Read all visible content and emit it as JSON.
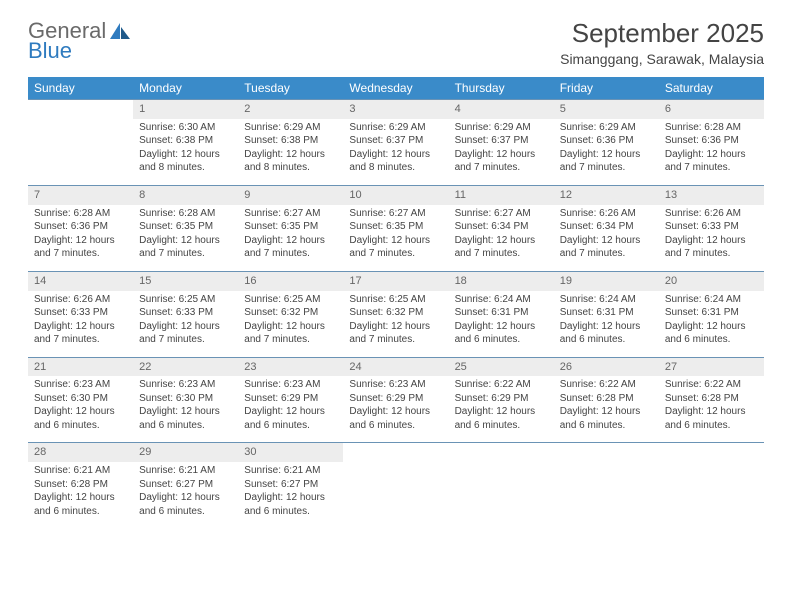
{
  "logo": {
    "text_general": "General",
    "text_blue": "Blue"
  },
  "title": "September 2025",
  "location": "Simanggang, Sarawak, Malaysia",
  "colors": {
    "header_bg": "#3a8bc9",
    "header_text": "#ffffff",
    "daynum_bg": "#ededed",
    "row_border": "#6a93b5",
    "body_text": "#444444",
    "logo_grey": "#6a6a6a",
    "logo_blue": "#2f7bbf"
  },
  "weekdays": [
    "Sunday",
    "Monday",
    "Tuesday",
    "Wednesday",
    "Thursday",
    "Friday",
    "Saturday"
  ],
  "layout": {
    "first_day_col": 1,
    "days_in_month": 30,
    "cols": 7
  },
  "days": {
    "1": {
      "sunrise": "6:30 AM",
      "sunset": "6:38 PM",
      "daylight": "12 hours and 8 minutes."
    },
    "2": {
      "sunrise": "6:29 AM",
      "sunset": "6:38 PM",
      "daylight": "12 hours and 8 minutes."
    },
    "3": {
      "sunrise": "6:29 AM",
      "sunset": "6:37 PM",
      "daylight": "12 hours and 8 minutes."
    },
    "4": {
      "sunrise": "6:29 AM",
      "sunset": "6:37 PM",
      "daylight": "12 hours and 7 minutes."
    },
    "5": {
      "sunrise": "6:29 AM",
      "sunset": "6:36 PM",
      "daylight": "12 hours and 7 minutes."
    },
    "6": {
      "sunrise": "6:28 AM",
      "sunset": "6:36 PM",
      "daylight": "12 hours and 7 minutes."
    },
    "7": {
      "sunrise": "6:28 AM",
      "sunset": "6:36 PM",
      "daylight": "12 hours and 7 minutes."
    },
    "8": {
      "sunrise": "6:28 AM",
      "sunset": "6:35 PM",
      "daylight": "12 hours and 7 minutes."
    },
    "9": {
      "sunrise": "6:27 AM",
      "sunset": "6:35 PM",
      "daylight": "12 hours and 7 minutes."
    },
    "10": {
      "sunrise": "6:27 AM",
      "sunset": "6:35 PM",
      "daylight": "12 hours and 7 minutes."
    },
    "11": {
      "sunrise": "6:27 AM",
      "sunset": "6:34 PM",
      "daylight": "12 hours and 7 minutes."
    },
    "12": {
      "sunrise": "6:26 AM",
      "sunset": "6:34 PM",
      "daylight": "12 hours and 7 minutes."
    },
    "13": {
      "sunrise": "6:26 AM",
      "sunset": "6:33 PM",
      "daylight": "12 hours and 7 minutes."
    },
    "14": {
      "sunrise": "6:26 AM",
      "sunset": "6:33 PM",
      "daylight": "12 hours and 7 minutes."
    },
    "15": {
      "sunrise": "6:25 AM",
      "sunset": "6:33 PM",
      "daylight": "12 hours and 7 minutes."
    },
    "16": {
      "sunrise": "6:25 AM",
      "sunset": "6:32 PM",
      "daylight": "12 hours and 7 minutes."
    },
    "17": {
      "sunrise": "6:25 AM",
      "sunset": "6:32 PM",
      "daylight": "12 hours and 7 minutes."
    },
    "18": {
      "sunrise": "6:24 AM",
      "sunset": "6:31 PM",
      "daylight": "12 hours and 6 minutes."
    },
    "19": {
      "sunrise": "6:24 AM",
      "sunset": "6:31 PM",
      "daylight": "12 hours and 6 minutes."
    },
    "20": {
      "sunrise": "6:24 AM",
      "sunset": "6:31 PM",
      "daylight": "12 hours and 6 minutes."
    },
    "21": {
      "sunrise": "6:23 AM",
      "sunset": "6:30 PM",
      "daylight": "12 hours and 6 minutes."
    },
    "22": {
      "sunrise": "6:23 AM",
      "sunset": "6:30 PM",
      "daylight": "12 hours and 6 minutes."
    },
    "23": {
      "sunrise": "6:23 AM",
      "sunset": "6:29 PM",
      "daylight": "12 hours and 6 minutes."
    },
    "24": {
      "sunrise": "6:23 AM",
      "sunset": "6:29 PM",
      "daylight": "12 hours and 6 minutes."
    },
    "25": {
      "sunrise": "6:22 AM",
      "sunset": "6:29 PM",
      "daylight": "12 hours and 6 minutes."
    },
    "26": {
      "sunrise": "6:22 AM",
      "sunset": "6:28 PM",
      "daylight": "12 hours and 6 minutes."
    },
    "27": {
      "sunrise": "6:22 AM",
      "sunset": "6:28 PM",
      "daylight": "12 hours and 6 minutes."
    },
    "28": {
      "sunrise": "6:21 AM",
      "sunset": "6:28 PM",
      "daylight": "12 hours and 6 minutes."
    },
    "29": {
      "sunrise": "6:21 AM",
      "sunset": "6:27 PM",
      "daylight": "12 hours and 6 minutes."
    },
    "30": {
      "sunrise": "6:21 AM",
      "sunset": "6:27 PM",
      "daylight": "12 hours and 6 minutes."
    }
  },
  "labels": {
    "sunrise_prefix": "Sunrise: ",
    "sunset_prefix": "Sunset: ",
    "daylight_prefix": "Daylight: "
  }
}
